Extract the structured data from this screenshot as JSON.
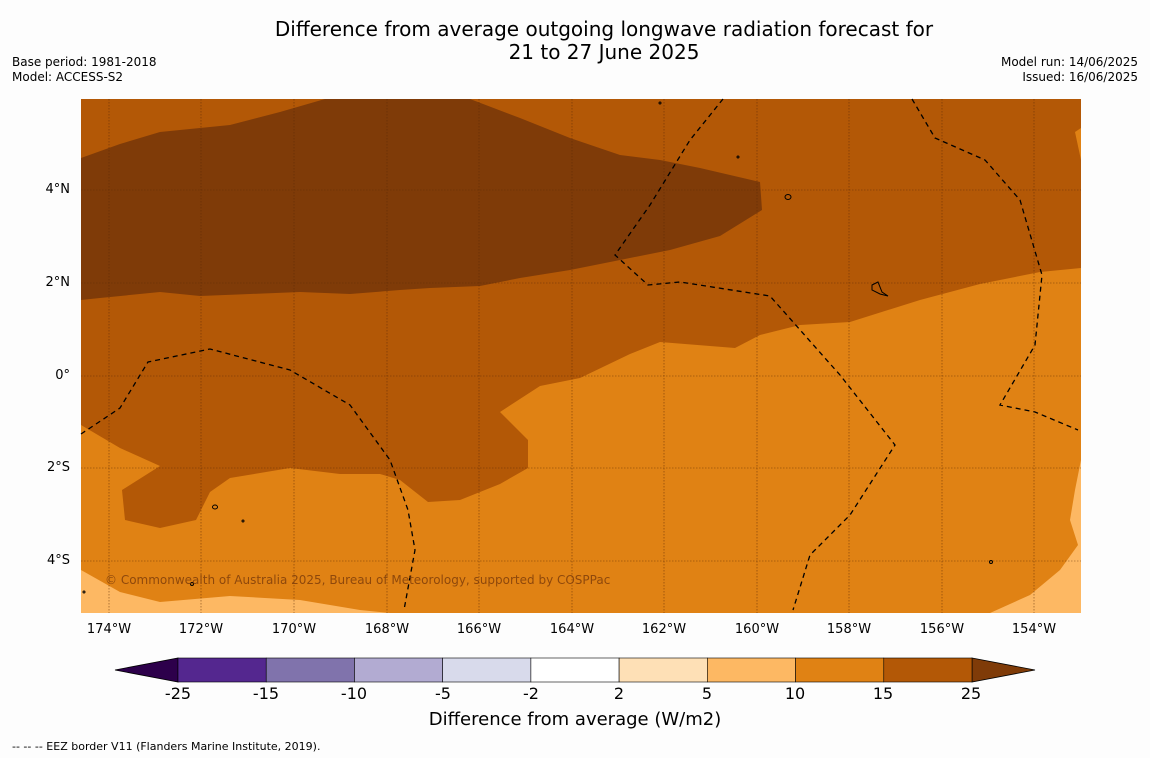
{
  "title_line1": "Difference from average outgoing longwave radiation forecast for",
  "title_line2": "21 to 27 June 2025",
  "base_period": "Base period: 1981-2018",
  "model": "Model: ACCESS-S2",
  "model_run": "Model run: 14/06/2025",
  "issued": "Issued: 16/06/2025",
  "lat_labels": [
    "4°N",
    "2°N",
    "0°",
    "2°S",
    "4°S"
  ],
  "lon_labels": [
    "174°W",
    "172°W",
    "170°W",
    "168°W",
    "166°W",
    "164°W",
    "162°W",
    "160°W",
    "158°W",
    "156°W",
    "154°W"
  ],
  "copyright": "© Commonwealth of Australia 2025, Bureau of Meteorology, supported by COSPPac",
  "colorbar": {
    "ticks": [
      "-25",
      "-15",
      "-10",
      "-5",
      "-2",
      "2",
      "5",
      "10",
      "15",
      "25"
    ],
    "colors": [
      "#54278f",
      "#8073ac",
      "#b2abd2",
      "#d8daeb",
      "#ffffff",
      "#fee0b6",
      "#fdb863",
      "#e08214",
      "#b35806"
    ],
    "extend_low_color": "#2d004b",
    "extend_high_color": "#7f3b08",
    "label": "Difference from average (W/m2)"
  },
  "footnote": "--  --  -- EEZ border V11 (Flanders Marine Institute, 2019)."
}
